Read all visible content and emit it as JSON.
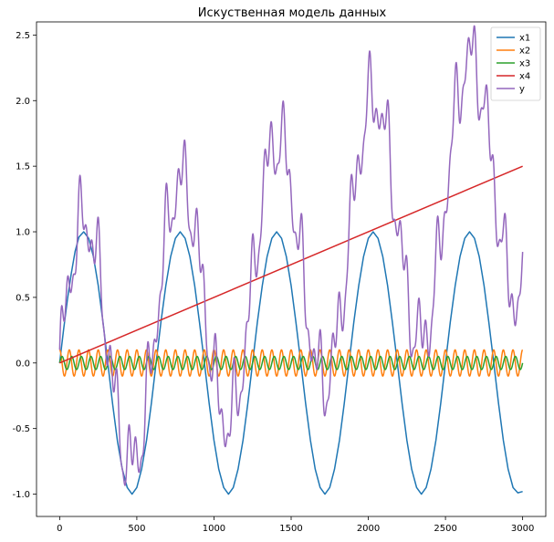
{
  "chart_data": {
    "type": "line",
    "title": "Искуственная модель данных",
    "xlabel": "",
    "ylabel": "",
    "xlim": [
      -150,
      3150
    ],
    "ylim": [
      -1.17,
      2.6
    ],
    "x_ticks": [
      0,
      500,
      1000,
      1500,
      2000,
      2500,
      3000
    ],
    "y_ticks": [
      -1.0,
      -0.5,
      0.0,
      0.5,
      1.0,
      1.5,
      2.0,
      2.5
    ],
    "legend_position": "top-right",
    "grid": false,
    "series": [
      {
        "name": "x1",
        "color": "#1f77b4",
        "formula": "sin(2*pi*x/625)",
        "x": [
          0,
          25,
          50,
          75,
          100,
          125,
          156,
          188,
          219,
          250,
          281,
          313,
          344,
          375,
          406,
          438,
          469,
          500,
          531,
          563,
          594,
          625,
          656,
          688,
          719,
          750,
          781,
          813,
          844,
          875,
          906,
          938,
          969,
          1000,
          1031,
          1063,
          1094,
          1125,
          1156,
          1188,
          1219,
          1250,
          1281,
          1313,
          1344,
          1375,
          1406,
          1438,
          1469,
          1500,
          1531,
          1563,
          1594,
          1625,
          1656,
          1688,
          1719,
          1750,
          1781,
          1813,
          1844,
          1875,
          1906,
          1938,
          1969,
          2000,
          2031,
          2063,
          2094,
          2125,
          2156,
          2188,
          2219,
          2250,
          2281,
          2313,
          2344,
          2375,
          2406,
          2438,
          2469,
          2500,
          2531,
          2563,
          2594,
          2625,
          2656,
          2688,
          2719,
          2750,
          2781,
          2813,
          2844,
          2875,
          2906,
          2938,
          2969,
          3000
        ],
        "values": [
          0,
          0.25,
          0.48,
          0.68,
          0.85,
          0.96,
          1.0,
          0.95,
          0.81,
          0.59,
          0.31,
          -0.01,
          -0.32,
          -0.6,
          -0.81,
          -0.95,
          -1.0,
          -0.95,
          -0.81,
          -0.59,
          -0.31,
          0.0,
          0.31,
          0.59,
          0.81,
          0.95,
          1.0,
          0.95,
          0.81,
          0.59,
          0.31,
          0.0,
          -0.31,
          -0.59,
          -0.81,
          -0.95,
          -1.0,
          -0.95,
          -0.81,
          -0.59,
          -0.31,
          0.0,
          0.31,
          0.59,
          0.81,
          0.95,
          1.0,
          0.95,
          0.81,
          0.59,
          0.31,
          0.0,
          -0.31,
          -0.59,
          -0.81,
          -0.95,
          -1.0,
          -0.95,
          -0.81,
          -0.59,
          -0.31,
          0.0,
          0.31,
          0.59,
          0.81,
          0.95,
          1.0,
          0.95,
          0.81,
          0.59,
          0.31,
          0.0,
          -0.31,
          -0.59,
          -0.81,
          -0.95,
          -1.0,
          -0.95,
          -0.81,
          -0.59,
          -0.31,
          0.0,
          0.31,
          0.59,
          0.81,
          0.95,
          1.0,
          0.95,
          0.81,
          0.59,
          0.31,
          0.0,
          -0.31,
          -0.59,
          -0.81,
          -0.95,
          -0.99,
          -0.98
        ]
      },
      {
        "name": "x2",
        "color": "#ff7f0e",
        "formula": "0.1*cos(2*pi*x/62.5)",
        "amplitude": 0.1,
        "period": 62.5,
        "x_range": [
          0,
          3000
        ]
      },
      {
        "name": "x3",
        "color": "#2ca02c",
        "formula": "0.05*sin(2*pi*x/62.5)",
        "amplitude": 0.05,
        "period": 62.5,
        "x_range": [
          0,
          3000
        ]
      },
      {
        "name": "x4",
        "color": "#d62728",
        "x": [
          0,
          3000
        ],
        "values": [
          0.0,
          1.5
        ]
      },
      {
        "name": "y",
        "color": "#9467bd",
        "formula": "x1 + x2 + x3 + x4 + 0.2*sin(2*pi*x/110) + 0.1*sin(2*pi*x/40)",
        "approx_peaks": [
          [
            190,
            1.18
          ],
          [
            780,
            1.49
          ],
          [
            1410,
            1.81
          ],
          [
            2030,
            2.12
          ],
          [
            2660,
            2.44
          ]
        ],
        "approx_troughs": [
          [
            480,
            -0.84
          ],
          [
            1120,
            -0.54
          ],
          [
            1740,
            -0.22
          ],
          [
            2370,
            0.09
          ],
          [
            3000,
            0.42
          ]
        ]
      }
    ]
  }
}
